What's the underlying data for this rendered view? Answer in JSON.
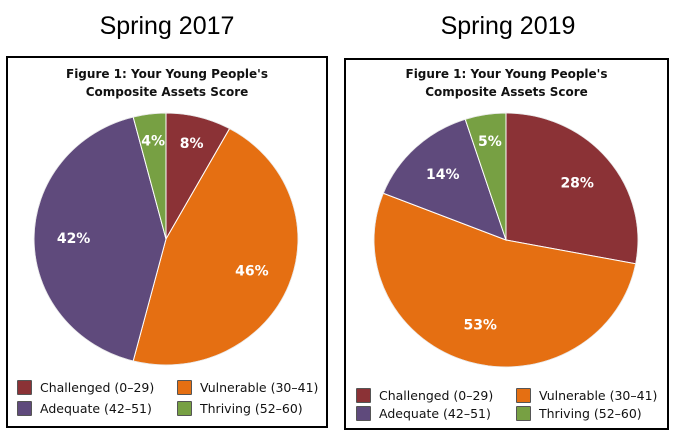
{
  "headings": [
    "Spring 2017",
    "Spring 2019"
  ],
  "colors": {
    "Challenged": "#8b3236",
    "Vulnerable": "#e56f12",
    "Adequate": "#5f4a7c",
    "Thriving": "#77a043"
  },
  "legend": [
    {
      "key": "Challenged",
      "label": "Challenged (0–29)"
    },
    {
      "key": "Vulnerable",
      "label": "Vulnerable (30–41)"
    },
    {
      "key": "Adequate",
      "label": "Adequate (42–51)"
    },
    {
      "key": "Thriving",
      "label": "Thriving (52–60)"
    }
  ],
  "chart_data": [
    {
      "type": "pie",
      "title": "Figure 1: Your Young People's Composite Assets Score",
      "title_lines": [
        "Figure 1: Your Young People's",
        "Composite Assets Score"
      ],
      "panel_heading": "Spring 2017",
      "categories": [
        "Challenged (0–29)",
        "Vulnerable (30–41)",
        "Adequate (42–51)",
        "Thriving (52–60)"
      ],
      "values": [
        8,
        46,
        42,
        4
      ],
      "data_labels": [
        "8%",
        "46%",
        "42%",
        "4%"
      ],
      "legend_position": "bottom"
    },
    {
      "type": "pie",
      "title": "Figure 1: Your Young People's Composite Assets Score",
      "title_lines": [
        "Figure 1: Your Young People's",
        "Composite Assets Score"
      ],
      "panel_heading": "Spring 2019",
      "categories": [
        "Challenged (0–29)",
        "Vulnerable (30–41)",
        "Adequate (42–51)",
        "Thriving (52–60)"
      ],
      "values": [
        28,
        53,
        14,
        5
      ],
      "data_labels": [
        "28%",
        "53%",
        "14%",
        "5%"
      ],
      "legend_position": "bottom"
    }
  ]
}
